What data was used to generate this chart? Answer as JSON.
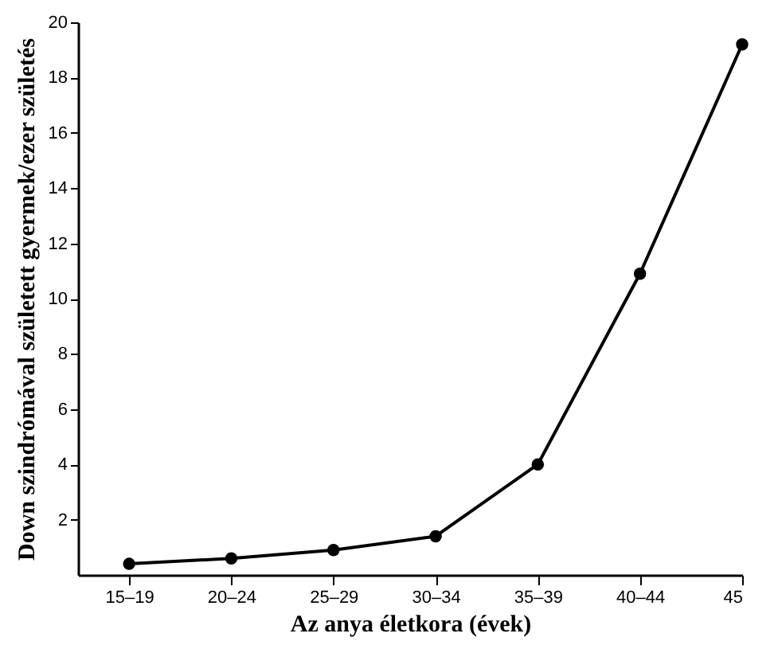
{
  "chart_data": {
    "type": "line",
    "xlabel": "Az anya életkora (évek)",
    "ylabel": "Down szindrómával született gyermek/ezer születés",
    "categories": [
      "15–19",
      "20–24",
      "25–29",
      "30–34",
      "35–39",
      "40–44",
      "45"
    ],
    "series": [
      {
        "color": "#000000",
        "values": [
          0.4,
          0.6,
          0.9,
          1.4,
          4.0,
          10.9,
          19.2
        ]
      }
    ],
    "ylim": [
      0,
      20
    ],
    "yticks": [
      2,
      4,
      6,
      8,
      10,
      12,
      14,
      16,
      18,
      20
    ],
    "grid": false,
    "marker": "circle",
    "line_style": "solid"
  }
}
